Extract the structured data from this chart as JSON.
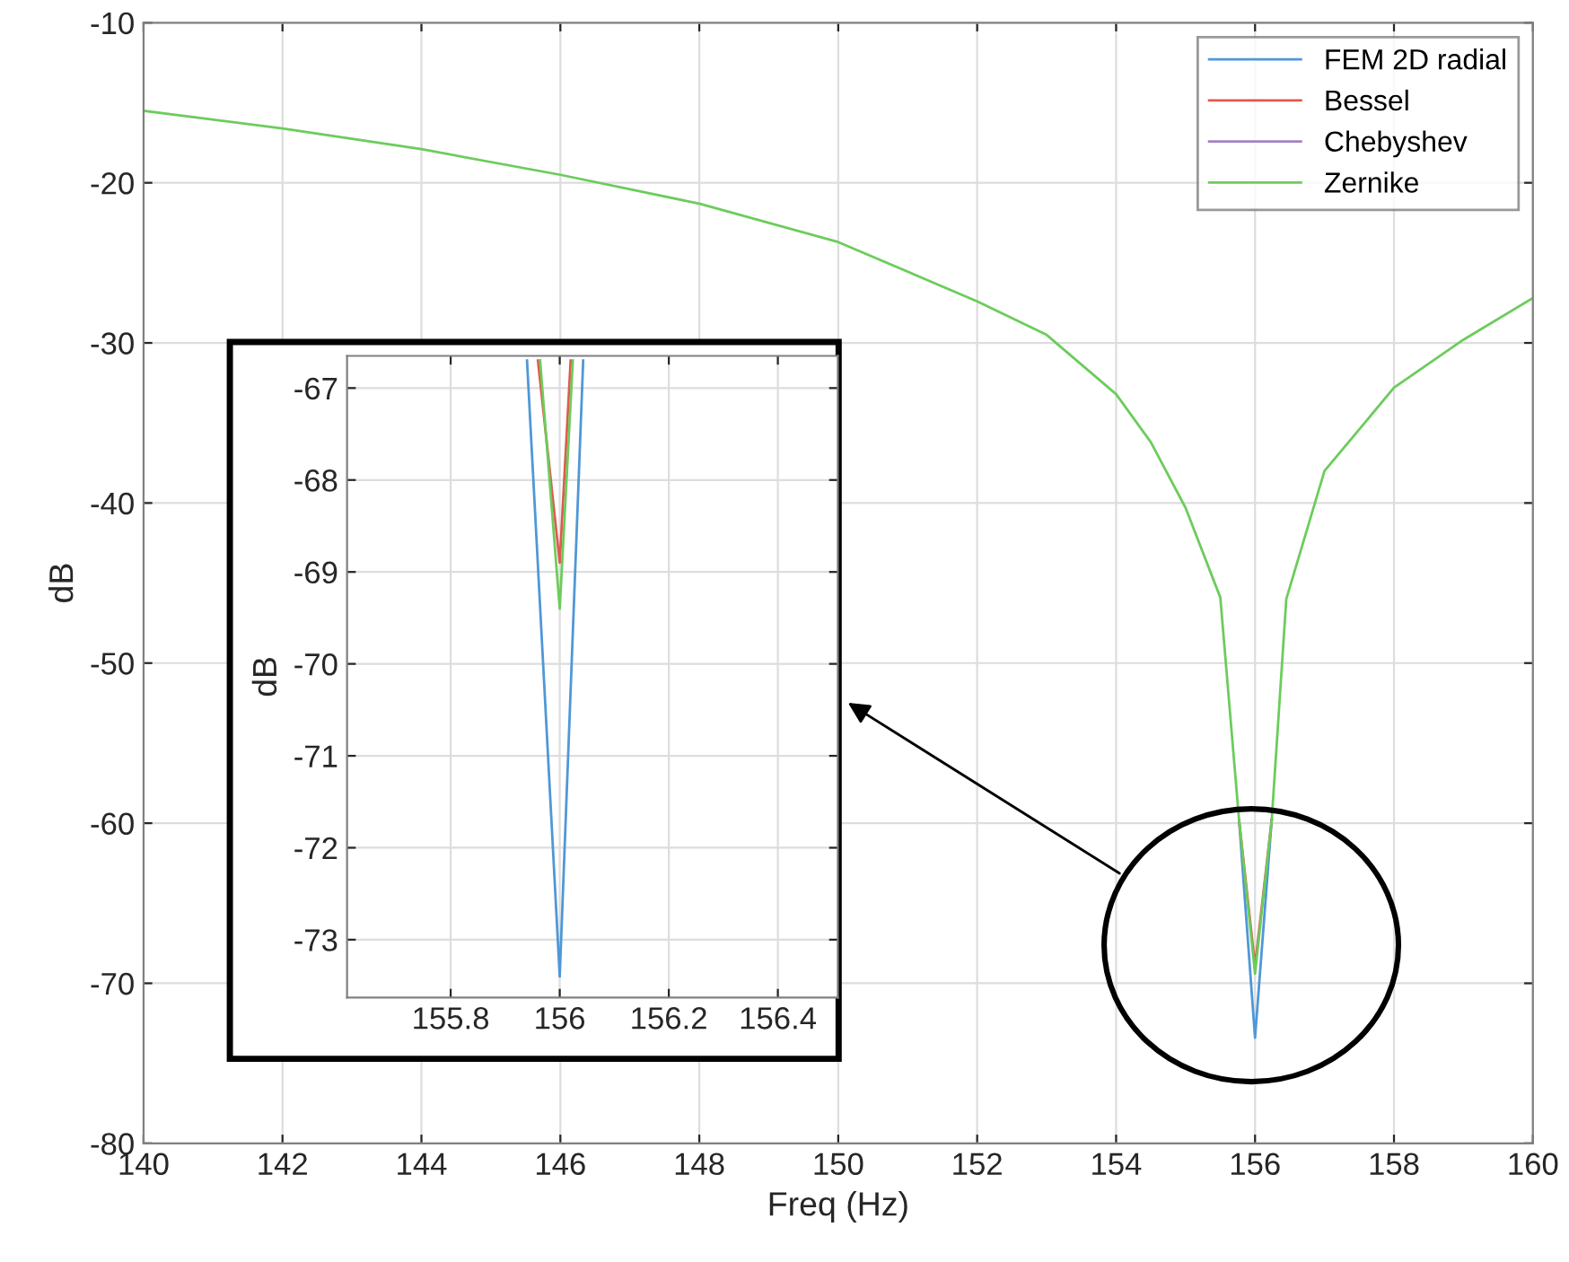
{
  "chart_data": [
    {
      "type": "line",
      "xlabel": "Freq (Hz)",
      "ylabel": "dB",
      "xlim": [
        140,
        160
      ],
      "ylim": [
        -80,
        -10
      ],
      "xticks": [
        140,
        142,
        144,
        146,
        148,
        150,
        152,
        154,
        156,
        158,
        160
      ],
      "yticks": [
        -80,
        -70,
        -60,
        -50,
        -40,
        -30,
        -20,
        -10
      ],
      "grid": true,
      "legend": "top right",
      "line_style": "solid",
      "x": [
        140,
        142,
        144,
        146,
        148,
        150,
        152,
        153,
        154,
        154.5,
        155,
        155.5,
        155.77,
        156,
        156.24,
        156.45,
        157,
        158,
        159,
        160
      ],
      "series": [
        {
          "name": "FEM 2D radial",
          "color": "#4f97d8",
          "values": [
            null,
            null,
            null,
            null,
            null,
            null,
            null,
            null,
            null,
            null,
            null,
            null,
            -59.8,
            -73.4,
            -59.8,
            null,
            null,
            null,
            null,
            null
          ]
        },
        {
          "name": "Bessel",
          "color": "#e05a4f",
          "values": [
            null,
            null,
            null,
            null,
            null,
            null,
            null,
            null,
            null,
            null,
            null,
            null,
            -59.8,
            -68.9,
            -59.8,
            null,
            null,
            null,
            null,
            null
          ]
        },
        {
          "name": "Chebyshev",
          "color": "#a283c4",
          "values": [
            null,
            null,
            null,
            null,
            null,
            null,
            null,
            null,
            null,
            null,
            null,
            null,
            null,
            null,
            null,
            null,
            null,
            null,
            null,
            null
          ]
        },
        {
          "name": "Zernike",
          "color": "#6ccc5c",
          "values": [
            -15.5,
            -16.6,
            -17.9,
            -19.5,
            -21.3,
            -23.7,
            -27.4,
            -29.5,
            -33.2,
            -36.2,
            -40.3,
            -45.9,
            -59.8,
            -69.4,
            -59.8,
            -46,
            -38,
            -32.8,
            -29.8,
            -27.2
          ]
        }
      ]
    },
    {
      "type": "line",
      "ylabel": "dB",
      "xlim": [
        155.61,
        156.51
      ],
      "ylim": [
        -73.63,
        -66.65
      ],
      "xticks": [
        155.8,
        156,
        156.2,
        156.4
      ],
      "yticks": [
        -73,
        -72,
        -71,
        -70,
        -69,
        -68,
        -67
      ],
      "grid": true,
      "line_style": "solid",
      "series": [
        {
          "color": "#4f97d8",
          "x": [
            155.94,
            156,
            156.043
          ],
          "values": [
            -66.7,
            -73.4,
            -66.7
          ]
        },
        {
          "color": "#e05a4f",
          "x": [
            155.96,
            156,
            156.02
          ],
          "values": [
            -66.7,
            -68.9,
            -66.7
          ]
        },
        {
          "color": "#6ccc5c",
          "x": [
            155.964,
            156,
            156.024
          ],
          "values": [
            -66.7,
            -69.4,
            -66.7
          ]
        }
      ]
    }
  ]
}
